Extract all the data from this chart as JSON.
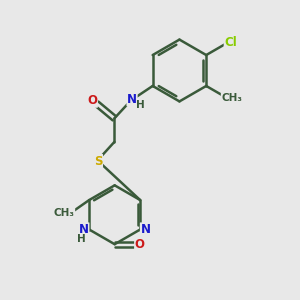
{
  "bg_color": "#e8e8e8",
  "bond_color": "#3a5a3a",
  "bond_width": 1.8,
  "atom_colors": {
    "C": "#3a5a3a",
    "N": "#1a1acc",
    "O": "#cc1a1a",
    "S": "#ccaa00",
    "Cl": "#88cc00",
    "H": "#3a5a3a"
  },
  "font_size": 8.5
}
